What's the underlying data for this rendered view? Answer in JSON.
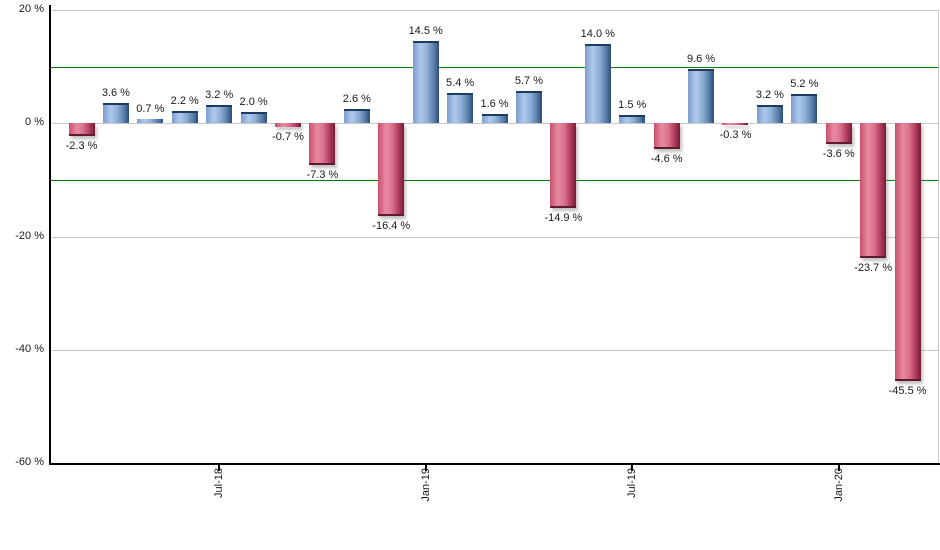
{
  "chart_data": {
    "type": "bar",
    "title": "",
    "xlabel": "",
    "ylabel": "",
    "unit": "%",
    "ylim": [
      -60,
      20
    ],
    "baseline_value": 0,
    "grid_values": [
      20,
      0,
      -20,
      -40
    ],
    "y_ticks": [
      {
        "value": 20,
        "label": "20 %"
      },
      {
        "value": 0,
        "label": "0 %"
      },
      {
        "value": -20,
        "label": "-20 %"
      },
      {
        "value": -40,
        "label": "-40 %"
      },
      {
        "value": -60,
        "label": "-60 %"
      }
    ],
    "x_ticks": [
      {
        "bar_index": 4,
        "label": "Jul-18"
      },
      {
        "bar_index": 10,
        "label": "Jan-19"
      },
      {
        "bar_index": 16,
        "label": "Jul-19"
      },
      {
        "bar_index": 22,
        "label": "Jan-20"
      }
    ],
    "threshold_lines": [
      {
        "value": 10
      },
      {
        "value": -10
      }
    ],
    "bars": [
      {
        "value": -2.3,
        "label": "-2.3 %"
      },
      {
        "value": 3.6,
        "label": "3.6 %"
      },
      {
        "value": 0.7,
        "label": "0.7 %"
      },
      {
        "value": 2.2,
        "label": "2.2 %"
      },
      {
        "value": 3.2,
        "label": "3.2 %"
      },
      {
        "value": 2.0,
        "label": "2.0 %"
      },
      {
        "value": -0.7,
        "label": "-0.7 %"
      },
      {
        "value": -7.3,
        "label": "-7.3 %"
      },
      {
        "value": 2.6,
        "label": "2.6 %"
      },
      {
        "value": -16.4,
        "label": "-16.4 %"
      },
      {
        "value": 14.5,
        "label": "14.5 %"
      },
      {
        "value": 5.4,
        "label": "5.4 %"
      },
      {
        "value": 1.6,
        "label": "1.6 %"
      },
      {
        "value": 5.7,
        "label": "5.7 %"
      },
      {
        "value": -14.9,
        "label": "-14.9 %"
      },
      {
        "value": 14.0,
        "label": "14.0 %"
      },
      {
        "value": 1.5,
        "label": "1.5 %"
      },
      {
        "value": -4.6,
        "label": "-4.6 %"
      },
      {
        "value": 9.6,
        "label": "9.6 %"
      },
      {
        "value": -0.3,
        "label": "-0.3 %"
      },
      {
        "value": 3.2,
        "label": "3.2 %"
      },
      {
        "value": 5.2,
        "label": "5.2 %"
      },
      {
        "value": -3.6,
        "label": "-3.6 %"
      },
      {
        "value": -23.7,
        "label": "-23.7 %"
      },
      {
        "value": -45.5,
        "label": "-45.5 %"
      }
    ],
    "colors": {
      "positive_gradient": [
        "#7b9dcb",
        "#aec9ec",
        "#8fafd6",
        "#5b80ab",
        "#2b4d77"
      ],
      "positive_cap": "#1d3b60",
      "negative_gradient": [
        "#c94f6e",
        "#e78aa1",
        "#d9718d",
        "#b03a5b",
        "#731d36"
      ],
      "negative_cap": "#5e1a2e",
      "threshold_line": "#008000",
      "gridline": "#c9c9c9",
      "axis": "#000000",
      "text": "#1a1a1a",
      "background": "#ffffff"
    }
  }
}
